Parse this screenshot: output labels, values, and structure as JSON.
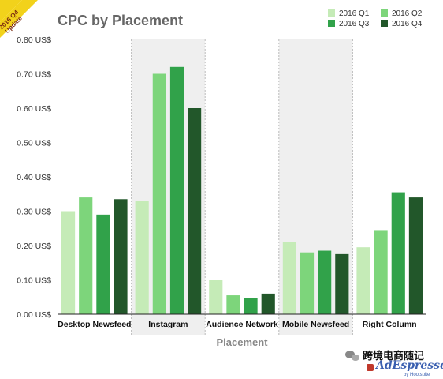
{
  "corner_ribbon": {
    "year": "2016 Q4",
    "note": "Update"
  },
  "watermark": {
    "wechat_text": "跨境电商随记",
    "brand": "AdEspresso",
    "brand_sub": "by Hootsuite"
  },
  "colors": {
    "shade": "#efefef",
    "separator": "#bbbbbb",
    "series": [
      "#c5ebb7",
      "#7dd57b",
      "#31a24a",
      "#22572a"
    ],
    "ribbon": "#f2d21b"
  },
  "chart_data": {
    "type": "bar",
    "title": "CPC by Placement",
    "xlabel": "Placement",
    "ylabel": "",
    "ylim": [
      0,
      0.8
    ],
    "yticks": [
      "0.00 US$",
      "0.10 US$",
      "0.20 US$",
      "0.30 US$",
      "0.40 US$",
      "0.50 US$",
      "0.60 US$",
      "0.70 US$",
      "0.80 US$"
    ],
    "shaded_categories": [
      1,
      3
    ],
    "legend_position": "top-right",
    "categories": [
      "Desktop Newsfeed",
      "Instagram",
      "Audience Network",
      "Mobile Newsfeed",
      "Right Column"
    ],
    "series": [
      {
        "name": "2016 Q1",
        "values": [
          0.3,
          0.33,
          0.1,
          0.21,
          0.195
        ]
      },
      {
        "name": "2016 Q2",
        "values": [
          0.34,
          0.7,
          0.055,
          0.18,
          0.245
        ]
      },
      {
        "name": "2016 Q3",
        "values": [
          0.29,
          0.72,
          0.048,
          0.185,
          0.355
        ]
      },
      {
        "name": "2016 Q4",
        "values": [
          0.335,
          0.6,
          0.06,
          0.175,
          0.34
        ]
      }
    ]
  }
}
